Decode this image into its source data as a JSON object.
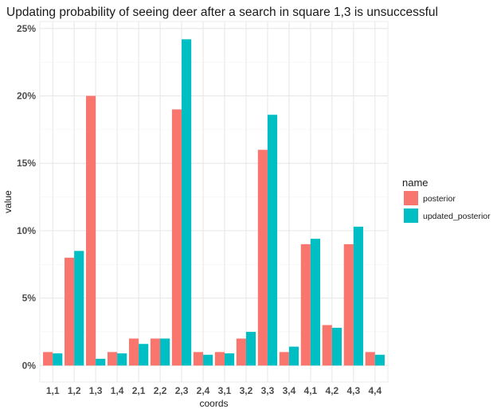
{
  "chart_data": {
    "type": "bar",
    "title": "Updating probability of seeing deer after a search in square 1,3 is unsuccessful",
    "xlabel": "coords",
    "ylabel": "value",
    "ylim": [
      -0.0122,
      0.2552
    ],
    "y_ticks": [
      0,
      0.05,
      0.1,
      0.15,
      0.2,
      0.25
    ],
    "y_tick_labels": [
      "0%",
      "5%",
      "10%",
      "15%",
      "20%",
      "25%"
    ],
    "categories": [
      "1,1",
      "1,2",
      "1,3",
      "1,4",
      "2,1",
      "2,2",
      "2,3",
      "2,4",
      "3,1",
      "3,2",
      "3,3",
      "3,4",
      "4,1",
      "4,2",
      "4,3",
      "4,4"
    ],
    "legend_title": "name",
    "legend_position": "right",
    "grid": true,
    "series": [
      {
        "name": "posterior",
        "color": "#F8766D",
        "values": [
          0.01,
          0.08,
          0.2,
          0.01,
          0.02,
          0.02,
          0.19,
          0.01,
          0.01,
          0.02,
          0.16,
          0.01,
          0.09,
          0.03,
          0.09,
          0.01
        ]
      },
      {
        "name": "updated_posterior",
        "color": "#00BFC4",
        "values": [
          0.009,
          0.085,
          0.005,
          0.009,
          0.016,
          0.02,
          0.242,
          0.008,
          0.009,
          0.025,
          0.186,
          0.014,
          0.094,
          0.028,
          0.103,
          0.008
        ]
      }
    ]
  }
}
